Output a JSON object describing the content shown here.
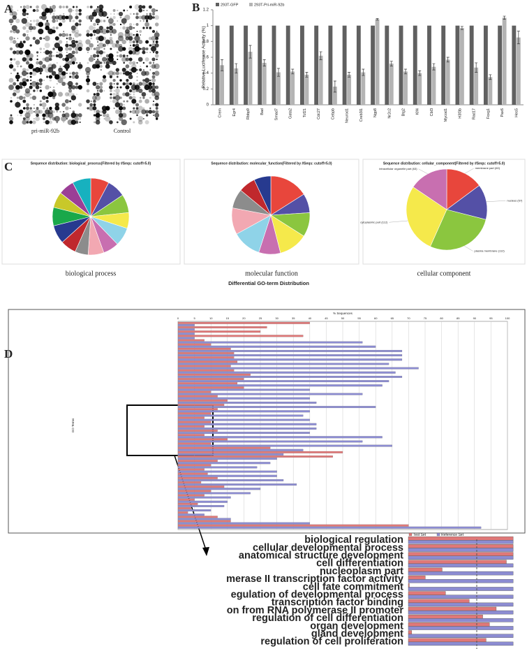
{
  "panel_labels": [
    "A",
    "B",
    "C",
    "D"
  ],
  "array_labels": [
    "pri-miR-92b",
    "Control"
  ],
  "go_caption": "Differential GO-term Distribution",
  "chart_data": [
    {
      "type": "bar",
      "ylabel": "Relative Luciferase Activity (%)",
      "categories": [
        "Crem",
        "Egr4",
        "Rbbp9",
        "Bad",
        "Smad7",
        "Gata2",
        "Tcf21",
        "Cdc27",
        "Cebpb",
        "Neurod1",
        "Creb3l1",
        "Ngp8",
        "Nr2c2",
        "Btg2",
        "Klf4",
        "Cbl3",
        "Mycod1",
        "H3f3b",
        "Rad17",
        "Foxg1",
        "Pax6",
        "Hes5"
      ],
      "series": [
        {
          "name": "293T-GFP",
          "color": "#606060",
          "values": [
            1,
            1,
            1,
            1,
            1,
            1,
            1,
            1,
            1,
            1,
            1,
            1,
            1,
            1,
            1,
            1,
            1,
            1,
            1,
            1,
            1,
            1
          ]
        },
        {
          "name": "293T-Pri-miR-92b",
          "color": "#b4b4b4",
          "values": [
            0.5,
            0.46,
            0.67,
            0.53,
            0.41,
            0.42,
            0.38,
            0.62,
            0.23,
            0.38,
            0.41,
            1.08,
            0.52,
            0.42,
            0.4,
            0.48,
            0.57,
            0.97,
            0.47,
            0.35,
            1.1,
            0.85
          ],
          "errors": [
            0.07,
            0.06,
            0.08,
            0.04,
            0.05,
            0.03,
            0.03,
            0.05,
            0.07,
            0.03,
            0.04,
            0.01,
            0.03,
            0.03,
            0.03,
            0.04,
            0.03,
            0.02,
            0.06,
            0.03,
            0.02,
            0.08
          ]
        }
      ],
      "ylim": [
        0,
        1.2
      ],
      "yticks": [
        0,
        0.2,
        0.4,
        0.6,
        0.8,
        1,
        1.2
      ],
      "grid": false
    },
    {
      "type": "pie",
      "title": "Sequence distribution: biological_process(Filtered by #Seqs: cutoff=5.0)",
      "caption": "biological process",
      "values": [
        7,
        7,
        7,
        6,
        7,
        6,
        6,
        5,
        6,
        7,
        7,
        6,
        6,
        7
      ],
      "colors": [
        "#e8463c",
        "#5450a6",
        "#8bc63f",
        "#f5e94b",
        "#8fd3e8",
        "#c86fb0",
        "#f2a8b2",
        "#8c8c8c",
        "#c0282d",
        "#273a8f",
        "#1aa84a",
        "#c8c82a",
        "#9b3f96",
        "#17b1bf"
      ]
    },
    {
      "type": "pie",
      "title": "Sequence distribution: molecular_function(Filtered by #Seqs: cutoff=5.0)",
      "caption": "molecular function",
      "values": [
        16,
        8,
        10,
        12,
        9,
        12,
        11,
        8,
        7,
        7
      ],
      "colors": [
        "#e8463c",
        "#5450a6",
        "#8bc63f",
        "#f5e94b",
        "#c86fb0",
        "#8fd3e8",
        "#f2a8b2",
        "#8c8c8c",
        "#c0282d",
        "#273a8f"
      ]
    },
    {
      "type": "pie",
      "title": "Sequence distribution: cellular_component(Filtered by #Seqs: cutoff=5.0)",
      "caption": "cellular component",
      "labels": [
        "membrane part (60)",
        "nucleus (57)",
        "plasma membrane (112)",
        "cytoplasmic part (112)",
        "intracellular organelle part (63)"
      ],
      "values": [
        60,
        57,
        112,
        112,
        63
      ],
      "colors": [
        "#e8463c",
        "#5450a6",
        "#8bc63f",
        "#f5e94b",
        "#c86fb0"
      ]
    },
    {
      "type": "hbar",
      "xlabel": "% Sequences",
      "ylabel": "GO Terms",
      "xlim": [
        0,
        100
      ],
      "xticks": [
        0,
        5,
        10,
        15,
        20,
        25,
        30,
        35,
        40,
        45,
        50,
        55,
        60,
        65,
        70,
        75,
        80,
        85,
        90,
        95,
        100
      ],
      "series": [
        {
          "color": "#e07878",
          "values": [
            40,
            27,
            25,
            38,
            8,
            10,
            16,
            17,
            17,
            18,
            16,
            17,
            22,
            20,
            18,
            20,
            10,
            12,
            15,
            14,
            12,
            10,
            8,
            10,
            8,
            12,
            8,
            15,
            10,
            28,
            50,
            47,
            12,
            10,
            8,
            9,
            12,
            7,
            14,
            10,
            8,
            5,
            6,
            4,
            3,
            12,
            16,
            70
          ]
        },
        {
          "color": "#8c8cd2",
          "values": [
            5,
            5,
            5,
            5,
            56,
            60,
            68,
            68,
            68,
            64,
            73,
            66,
            68,
            64,
            62,
            40,
            56,
            40,
            42,
            60,
            40,
            38,
            40,
            42,
            42,
            40,
            62,
            56,
            65,
            38,
            32,
            30,
            28,
            24,
            30,
            30,
            32,
            36,
            25,
            22,
            16,
            15,
            14,
            10,
            8,
            16,
            40,
            92
          ]
        }
      ]
    },
    {
      "type": "hbar",
      "categories": [
        "biological regulation",
        "cellular developmental process",
        "anatomical structure development",
        "cell differentiation",
        "nucleoplasm part",
        "merase II transcription factor activity",
        "cell fate commitment",
        "egulation of developmental process",
        "transcription factor binding",
        "on from RNA polymerase II promoter",
        "regulation of cell differentiation",
        "organ development",
        "gland development",
        "regulation of cell proliferation"
      ],
      "series": [
        {
          "name": "Test Set",
          "color": "#e07878",
          "values": [
            31,
            31,
            31,
            29,
            10,
            5,
            0.3,
            11,
            18,
            26,
            22,
            24,
            1,
            23
          ]
        },
        {
          "name": "Reference Set",
          "color": "#8c8cd2",
          "values": [
            31,
            31,
            31,
            31,
            31,
            31,
            31,
            31,
            31,
            31,
            31,
            31,
            31,
            31
          ]
        }
      ],
      "xlim": [
        0,
        32
      ]
    }
  ]
}
